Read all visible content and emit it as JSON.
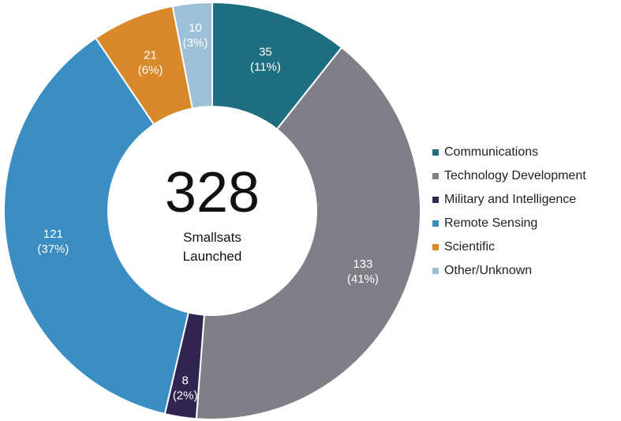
{
  "chart_data": {
    "type": "pie",
    "donut": true,
    "center": {
      "number": "328",
      "line1": "Smallsats",
      "line2": "Launched"
    },
    "slices": [
      {
        "name": "Communications",
        "value": 35,
        "label_value": "35",
        "label_pct": "(11%)",
        "color": "#1d6f80"
      },
      {
        "name": "Technology Development",
        "value": 133,
        "label_value": "133",
        "label_pct": "(41%)",
        "color": "#7f7f88"
      },
      {
        "name": "Military and Intelligence",
        "value": 8,
        "label_value": "8",
        "label_pct": "(2%)",
        "color": "#2f2550"
      },
      {
        "name": "Remote Sensing",
        "value": 121,
        "label_value": "121",
        "label_pct": "(37%)",
        "color": "#3a8ec4"
      },
      {
        "name": "Scientific",
        "value": 21,
        "label_value": "21",
        "label_pct": "(6%)",
        "color": "#d8892a"
      },
      {
        "name": "Other/Unknown",
        "value": 10,
        "label_value": "10",
        "label_pct": "(3%)",
        "color": "#9dbfd8"
      }
    ],
    "legend_position": "right"
  }
}
